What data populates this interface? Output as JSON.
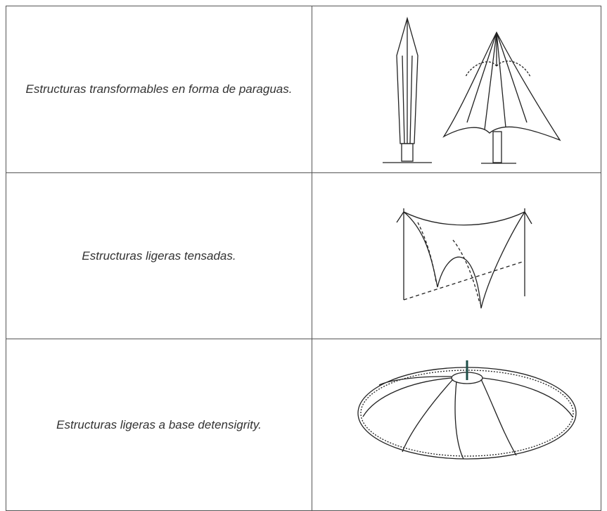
{
  "table": {
    "rows": [
      {
        "text": "Estructuras transformables en forma de paraguas."
      },
      {
        "text": "Estructuras ligeras tensadas."
      },
      {
        "text": "Estructuras ligeras a base detensigrity."
      }
    ]
  }
}
